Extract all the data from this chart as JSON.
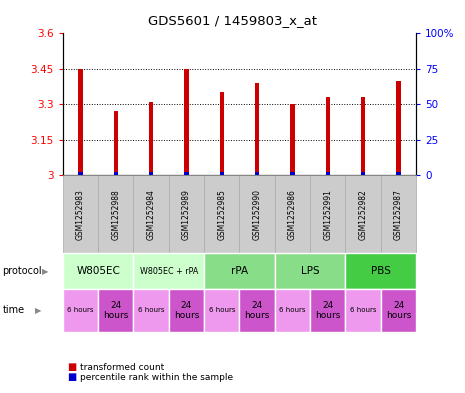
{
  "title": "GDS5601 / 1459803_x_at",
  "samples": [
    "GSM1252983",
    "GSM1252988",
    "GSM1252984",
    "GSM1252989",
    "GSM1252985",
    "GSM1252990",
    "GSM1252986",
    "GSM1252991",
    "GSM1252982",
    "GSM1252987"
  ],
  "transformed_counts": [
    3.45,
    3.27,
    3.31,
    3.45,
    3.35,
    3.39,
    3.3,
    3.33,
    3.33,
    3.4
  ],
  "percentile_ranks": [
    2,
    2,
    2,
    2,
    2,
    2,
    2,
    2,
    2,
    2
  ],
  "ylim_left": [
    3.0,
    3.6
  ],
  "ylim_right": [
    0,
    100
  ],
  "yticks_left": [
    3.0,
    3.15,
    3.3,
    3.45,
    3.6
  ],
  "yticks_right": [
    0,
    25,
    50,
    75,
    100
  ],
  "ytick_labels_left": [
    "3",
    "3.15",
    "3.3",
    "3.45",
    "3.6"
  ],
  "ytick_labels_right": [
    "0",
    "25",
    "50",
    "75",
    "100%"
  ],
  "protocols": [
    {
      "label": "W805EC",
      "start": 0,
      "end": 2,
      "color": "#ccffcc"
    },
    {
      "label": "W805EC + rPA",
      "start": 2,
      "end": 4,
      "color": "#ccffcc"
    },
    {
      "label": "rPA",
      "start": 4,
      "end": 6,
      "color": "#88dd88"
    },
    {
      "label": "LPS",
      "start": 6,
      "end": 8,
      "color": "#88dd88"
    },
    {
      "label": "PBS",
      "start": 8,
      "end": 10,
      "color": "#44cc44"
    }
  ],
  "times": [
    {
      "label": "6 hours",
      "start": 0,
      "end": 1,
      "color": "#ee99ee"
    },
    {
      "label": "24\nhours",
      "start": 1,
      "end": 2,
      "color": "#cc55cc"
    },
    {
      "label": "6 hours",
      "start": 2,
      "end": 3,
      "color": "#ee99ee"
    },
    {
      "label": "24\nhours",
      "start": 3,
      "end": 4,
      "color": "#cc55cc"
    },
    {
      "label": "6 hours",
      "start": 4,
      "end": 5,
      "color": "#ee99ee"
    },
    {
      "label": "24\nhours",
      "start": 5,
      "end": 6,
      "color": "#cc55cc"
    },
    {
      "label": "6 hours",
      "start": 6,
      "end": 7,
      "color": "#ee99ee"
    },
    {
      "label": "24\nhours",
      "start": 7,
      "end": 8,
      "color": "#cc55cc"
    },
    {
      "label": "6 hours",
      "start": 8,
      "end": 9,
      "color": "#ee99ee"
    },
    {
      "label": "24\nhours",
      "start": 9,
      "end": 10,
      "color": "#cc55cc"
    }
  ],
  "bar_color": "#cc0000",
  "percentile_color": "#0000cc",
  "sample_bg_color": "#cccccc",
  "sample_edge_color": "#aaaaaa",
  "legend_red": "transformed count",
  "legend_blue": "percentile rank within the sample",
  "bar_width": 0.12
}
